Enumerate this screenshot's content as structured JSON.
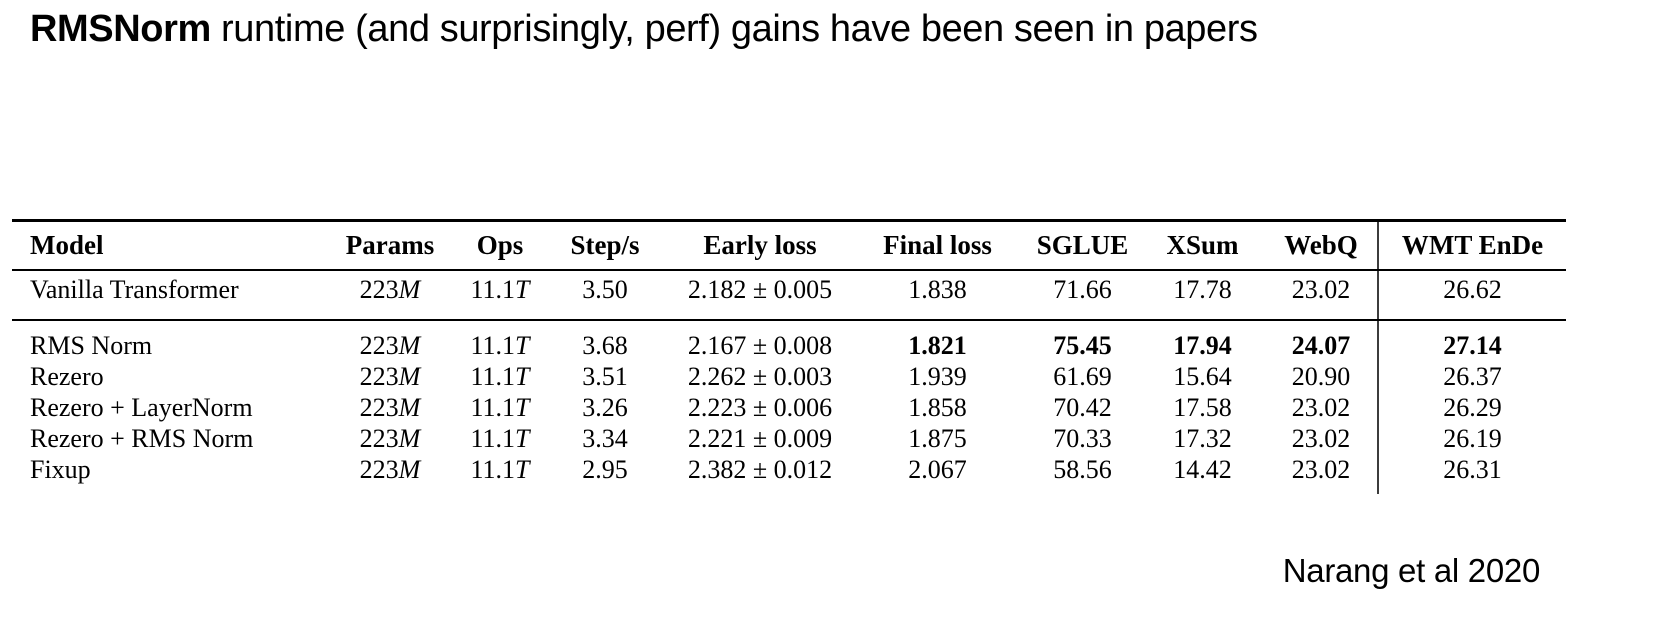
{
  "title": {
    "highlight": "RMSNorm",
    "rest": " runtime (and surprisingly, perf) gains have been seen in papers"
  },
  "citation": "Narang et al 2020",
  "table": {
    "columns": [
      {
        "key": "model",
        "label": "Model",
        "align": "left"
      },
      {
        "key": "params",
        "label": "Params"
      },
      {
        "key": "ops",
        "label": "Ops"
      },
      {
        "key": "steps",
        "label": "Step/s"
      },
      {
        "key": "early_loss",
        "label": "Early loss"
      },
      {
        "key": "final_loss",
        "label": "Final loss"
      },
      {
        "key": "sglue",
        "label": "SGLUE"
      },
      {
        "key": "xsum",
        "label": "XSum"
      },
      {
        "key": "webq",
        "label": "WebQ"
      },
      {
        "key": "wmt_ende",
        "label": "WMT EnDe",
        "divider_left": true
      }
    ],
    "italic_letter_cols": [
      "params",
      "ops"
    ],
    "sections": [
      {
        "name": "baseline",
        "rows": [
          {
            "model": "Vanilla Transformer",
            "params": "223M",
            "ops": "11.1T",
            "steps": "3.50",
            "early_loss": "2.182 ± 0.005",
            "final_loss": "1.838",
            "sglue": "71.66",
            "xsum": "17.78",
            "webq": "23.02",
            "wmt_ende": "26.62"
          }
        ]
      },
      {
        "name": "variants",
        "rows": [
          {
            "model": "RMS Norm",
            "params": "223M",
            "ops": "11.1T",
            "steps": "3.68",
            "early_loss": "2.167 ± 0.008",
            "final_loss": "1.821",
            "sglue": "75.45",
            "xsum": "17.94",
            "webq": "24.07",
            "wmt_ende": "27.14",
            "bold_cols": [
              "final_loss",
              "sglue",
              "xsum",
              "webq",
              "wmt_ende"
            ]
          },
          {
            "model": "Rezero",
            "params": "223M",
            "ops": "11.1T",
            "steps": "3.51",
            "early_loss": "2.262 ± 0.003",
            "final_loss": "1.939",
            "sglue": "61.69",
            "xsum": "15.64",
            "webq": "20.90",
            "wmt_ende": "26.37"
          },
          {
            "model": "Rezero + LayerNorm",
            "params": "223M",
            "ops": "11.1T",
            "steps": "3.26",
            "early_loss": "2.223 ± 0.006",
            "final_loss": "1.858",
            "sglue": "70.42",
            "xsum": "17.58",
            "webq": "23.02",
            "wmt_ende": "26.29"
          },
          {
            "model": "Rezero + RMS Norm",
            "params": "223M",
            "ops": "11.1T",
            "steps": "3.34",
            "early_loss": "2.221 ± 0.009",
            "final_loss": "1.875",
            "sglue": "70.33",
            "xsum": "17.32",
            "webq": "23.02",
            "wmt_ende": "26.19"
          },
          {
            "model": "Fixup",
            "params": "223M",
            "ops": "11.1T",
            "steps": "2.95",
            "early_loss": "2.382 ± 0.012",
            "final_loss": "2.067",
            "sglue": "58.56",
            "xsum": "14.42",
            "webq": "23.02",
            "wmt_ende": "26.31"
          }
        ]
      }
    ]
  }
}
